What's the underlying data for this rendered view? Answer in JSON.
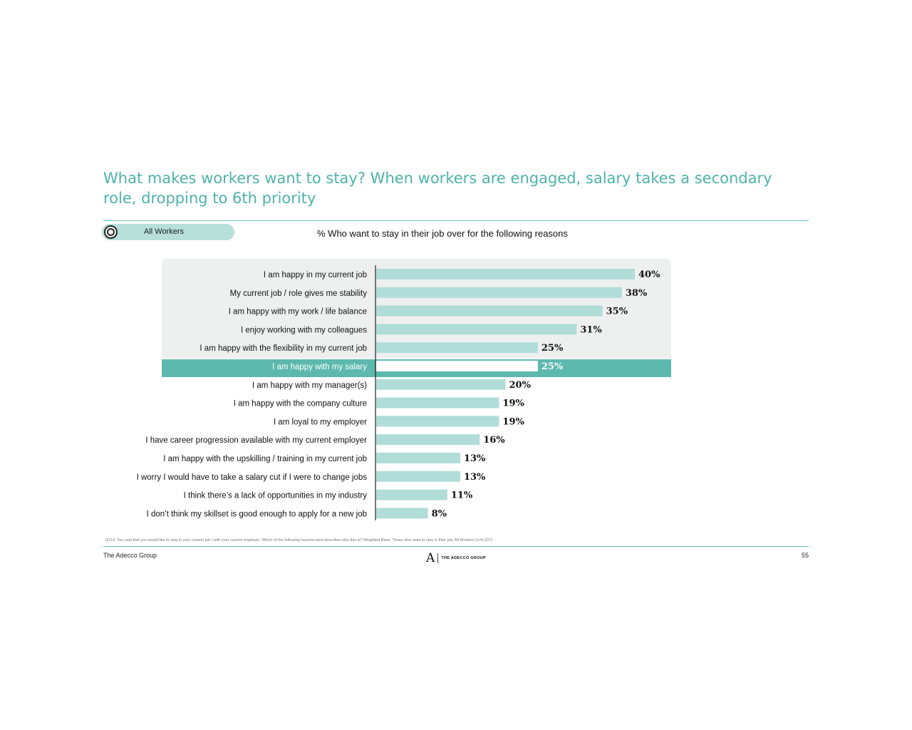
{
  "header": {
    "title": "What makes workers want to stay? When workers are engaged, salary takes a secondary role, dropping to 6th priority"
  },
  "filter": {
    "label": "All Workers"
  },
  "chart_data": {
    "type": "bar",
    "orientation": "horizontal",
    "title": "% Who want to stay in their job over for the following reasons",
    "categories": [
      "I am happy in my current job",
      "My current job / role gives me stability",
      "I am happy with my work / life balance",
      "I enjoy working with my colleagues",
      "I am happy with the flexibility in my current job",
      "I am happy with my salary",
      "I am happy with my manager(s)",
      "I am happy with the company culture",
      "I am loyal to my employer",
      "I have career progression available with my current employer",
      "I am happy with the upskilling / training in my current job",
      "I worry I would have to take a salary cut if I were to change jobs",
      "I think there’s a lack of opportunities in my industry",
      "I don’t think my skillset is good enough to apply for a new job"
    ],
    "values": [
      40,
      38,
      35,
      31,
      25,
      25,
      20,
      19,
      19,
      16,
      13,
      13,
      11,
      8
    ],
    "labels": [
      "40%",
      "38%",
      "35%",
      "31%",
      "25%",
      "25%",
      "20%",
      "19%",
      "19%",
      "16%",
      "13%",
      "13%",
      "11%",
      "8%"
    ],
    "highlight_index": 5,
    "xlim": [
      0,
      40
    ],
    "bar_color": "#b0ddd8",
    "highlight_color": "#5db8ae"
  },
  "footnote": "Q114. You said that you would like to stay in your current job / with your current employer. Which of the following reasons best describes why this is? Weighted Base: Those who want to stay in their job; All Workers (n=5,237)",
  "footer": {
    "company": "The Adecco Group",
    "logo_mark": "A",
    "logo_text": "THE ADECCO GROUP",
    "page_number": "55"
  },
  "colors": {
    "accent": "#4db3aa",
    "bar": "#b0ddd8",
    "highlight": "#5db8ae"
  }
}
